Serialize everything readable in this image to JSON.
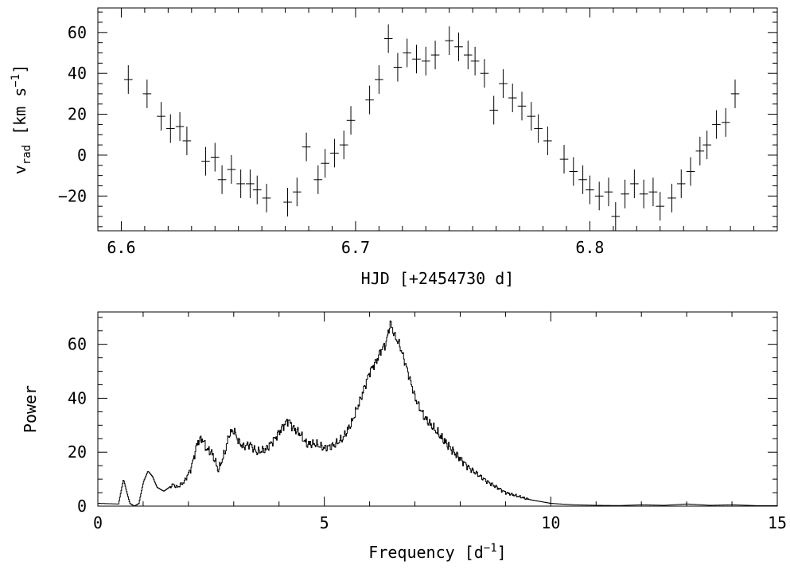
{
  "chart_data": [
    {
      "type": "scatter",
      "xlabel": "HJD [+2454730 d]",
      "ylabel_main": "v",
      "ylabel_sub": "rad",
      "ylabel_unit": " [km s",
      "ylabel_sup": "−1",
      "ylabel_end": "]",
      "xlim": [
        6.59,
        6.88
      ],
      "ylim": [
        -37,
        72
      ],
      "xticks": [
        6.6,
        6.7,
        6.8
      ],
      "xticklabels": [
        "6.6",
        "6.7",
        "6.8"
      ],
      "yticks": [
        -20,
        0,
        20,
        40,
        60
      ],
      "yticklabels": [
        "−20",
        "0",
        "20",
        "40",
        "60"
      ],
      "xminor_step": 0.01,
      "yminor_step": 5,
      "error_bar": 7,
      "x_half_width": 0.0018,
      "points": [
        [
          6.603,
          37
        ],
        [
          6.611,
          30
        ],
        [
          6.617,
          19
        ],
        [
          6.621,
          13
        ],
        [
          6.625,
          14
        ],
        [
          6.628,
          7
        ],
        [
          6.636,
          -3
        ],
        [
          6.64,
          -1
        ],
        [
          6.643,
          -12
        ],
        [
          6.647,
          -7
        ],
        [
          6.651,
          -14
        ],
        [
          6.655,
          -14
        ],
        [
          6.658,
          -17
        ],
        [
          6.662,
          -21
        ],
        [
          6.671,
          -23
        ],
        [
          6.675,
          -18
        ],
        [
          6.679,
          4
        ],
        [
          6.684,
          -12
        ],
        [
          6.687,
          -4
        ],
        [
          6.691,
          1
        ],
        [
          6.695,
          5
        ],
        [
          6.698,
          17
        ],
        [
          6.706,
          27
        ],
        [
          6.71,
          37
        ],
        [
          6.714,
          57
        ],
        [
          6.718,
          43
        ],
        [
          6.722,
          50
        ],
        [
          6.726,
          47
        ],
        [
          6.73,
          46
        ],
        [
          6.734,
          49
        ],
        [
          6.74,
          56
        ],
        [
          6.744,
          53
        ],
        [
          6.748,
          49
        ],
        [
          6.751,
          46
        ],
        [
          6.755,
          40
        ],
        [
          6.759,
          22
        ],
        [
          6.763,
          35
        ],
        [
          6.767,
          28
        ],
        [
          6.771,
          24
        ],
        [
          6.775,
          19
        ],
        [
          6.778,
          13
        ],
        [
          6.782,
          7
        ],
        [
          6.789,
          -2
        ],
        [
          6.793,
          -8
        ],
        [
          6.797,
          -12
        ],
        [
          6.8,
          -17
        ],
        [
          6.804,
          -20
        ],
        [
          6.808,
          -18
        ],
        [
          6.811,
          -30
        ],
        [
          6.815,
          -19
        ],
        [
          6.819,
          -14
        ],
        [
          6.823,
          -19
        ],
        [
          6.827,
          -18
        ],
        [
          6.83,
          -25
        ],
        [
          6.835,
          -21
        ],
        [
          6.839,
          -14
        ],
        [
          6.843,
          -8
        ],
        [
          6.847,
          2
        ],
        [
          6.85,
          5
        ],
        [
          6.854,
          15
        ],
        [
          6.858,
          16
        ],
        [
          6.862,
          30
        ]
      ]
    },
    {
      "type": "line",
      "xlabel_main": "Frequency [d",
      "xlabel_sup": "−1",
      "xlabel_end": "]",
      "ylabel": "Power",
      "xlim": [
        0,
        15
      ],
      "ylim": [
        0,
        72
      ],
      "xticks": [
        0,
        5,
        10,
        15
      ],
      "xticklabels": [
        "0",
        "5",
        "10",
        "15"
      ],
      "yticks": [
        0,
        20,
        40,
        60
      ],
      "yticklabels": [
        "0",
        "20",
        "40",
        "60"
      ],
      "xminor_step": 1,
      "yminor_step": 5,
      "anchors": [
        [
          0.0,
          1.0
        ],
        [
          0.45,
          0.8
        ],
        [
          0.5,
          5.0
        ],
        [
          0.56,
          10.0
        ],
        [
          0.62,
          6.0
        ],
        [
          0.7,
          1.0
        ],
        [
          0.8,
          0.0
        ],
        [
          0.9,
          1.0
        ],
        [
          1.0,
          9.0
        ],
        [
          1.1,
          13.0
        ],
        [
          1.2,
          11.0
        ],
        [
          1.3,
          7.0
        ],
        [
          1.45,
          5.5
        ],
        [
          1.65,
          8.0
        ],
        [
          1.75,
          7.0
        ],
        [
          1.9,
          9.0
        ],
        [
          2.05,
          14.0
        ],
        [
          2.2,
          24.0
        ],
        [
          2.3,
          25.0
        ],
        [
          2.4,
          21.0
        ],
        [
          2.5,
          20.0
        ],
        [
          2.6,
          16.0
        ],
        [
          2.65,
          13.0
        ],
        [
          2.8,
          20.0
        ],
        [
          2.9,
          27.0
        ],
        [
          3.0,
          28.0
        ],
        [
          3.1,
          24.0
        ],
        [
          3.2,
          22.0
        ],
        [
          3.35,
          23.0
        ],
        [
          3.5,
          20.0
        ],
        [
          3.7,
          21.0
        ],
        [
          3.9,
          25.0
        ],
        [
          4.1,
          30.0
        ],
        [
          4.2,
          32.0
        ],
        [
          4.3,
          29.0
        ],
        [
          4.45,
          27.0
        ],
        [
          4.6,
          23.0
        ],
        [
          4.8,
          23.0
        ],
        [
          5.0,
          21.5
        ],
        [
          5.2,
          22.5
        ],
        [
          5.4,
          25.0
        ],
        [
          5.6,
          31.0
        ],
        [
          5.8,
          40.0
        ],
        [
          6.0,
          50.0
        ],
        [
          6.15,
          54.0
        ],
        [
          6.25,
          58.0
        ],
        [
          6.35,
          60.0
        ],
        [
          6.45,
          68.0
        ],
        [
          6.55,
          63.0
        ],
        [
          6.65,
          60.0
        ],
        [
          6.8,
          52.0
        ],
        [
          7.0,
          40.0
        ],
        [
          7.2,
          33.0
        ],
        [
          7.5,
          27.0
        ],
        [
          7.8,
          21.0
        ],
        [
          8.2,
          14.0
        ],
        [
          8.6,
          9.0
        ],
        [
          9.0,
          5.0
        ],
        [
          9.5,
          2.5
        ],
        [
          10.0,
          1.0
        ],
        [
          10.5,
          0.5
        ],
        [
          11.0,
          0.3
        ],
        [
          11.5,
          0.2
        ],
        [
          12.0,
          0.5
        ],
        [
          12.5,
          0.3
        ],
        [
          13.0,
          0.8
        ],
        [
          13.5,
          0.3
        ],
        [
          14.0,
          0.5
        ],
        [
          14.5,
          0.2
        ],
        [
          15.0,
          0.2
        ]
      ]
    }
  ]
}
